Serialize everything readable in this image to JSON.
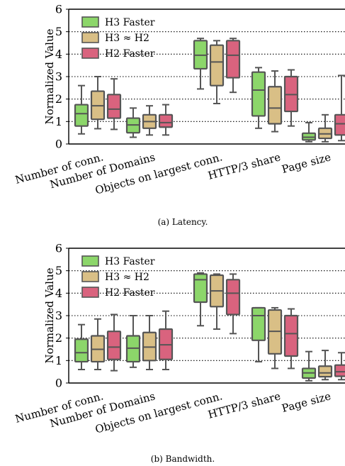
{
  "figure": {
    "captions": [
      "(a) Latency.",
      "(b) Bandwidth."
    ]
  },
  "colors": {
    "h3_faster": "#8cd66a",
    "equal": "#d9bf86",
    "h2_faster": "#d9637e",
    "box_edge": "#555555"
  },
  "chart_data": [
    {
      "type": "box",
      "ylabel": "Normalized Value",
      "ylim": [
        0,
        6
      ],
      "yticks": [
        0,
        1,
        2,
        3,
        4,
        5,
        6
      ],
      "grid": "horizontal-dotted",
      "legend_position": "top-left",
      "categories": [
        "Number of conn.",
        "Number of Domains",
        "Objects on largest conn.",
        "HTTP/3 share",
        "Page size"
      ],
      "series": [
        {
          "name": "H3 Faster",
          "color": "#8cd66a",
          "boxes": [
            {
              "whislo": 0.45,
              "q1": 0.8,
              "med": 1.35,
              "q3": 1.75,
              "whishi": 2.6
            },
            {
              "whislo": 0.3,
              "q1": 0.5,
              "med": 0.85,
              "q3": 1.15,
              "whishi": 1.6
            },
            {
              "whislo": 2.45,
              "q1": 3.35,
              "med": 3.95,
              "q3": 4.6,
              "whishi": 4.7
            },
            {
              "whislo": 0.7,
              "q1": 1.25,
              "med": 2.4,
              "q3": 3.2,
              "whishi": 3.4
            },
            {
              "whislo": 0.1,
              "q1": 0.18,
              "med": 0.3,
              "q3": 0.48,
              "whishi": 0.95
            }
          ]
        },
        {
          "name": "H3 ≈ H2",
          "color": "#d9bf86",
          "boxes": [
            {
              "whislo": 0.68,
              "q1": 1.1,
              "med": 1.7,
              "q3": 2.35,
              "whishi": 3.0
            },
            {
              "whislo": 0.4,
              "q1": 0.7,
              "med": 1.0,
              "q3": 1.3,
              "whishi": 1.7
            },
            {
              "whislo": 1.8,
              "q1": 2.6,
              "med": 3.65,
              "q3": 4.4,
              "whishi": 4.6
            },
            {
              "whislo": 0.55,
              "q1": 0.9,
              "med": 1.6,
              "q3": 2.55,
              "whishi": 3.25
            },
            {
              "whislo": 0.1,
              "q1": 0.25,
              "med": 0.45,
              "q3": 0.7,
              "whishi": 1.3
            }
          ]
        },
        {
          "name": "H2 Faster",
          "color": "#d9637e",
          "boxes": [
            {
              "whislo": 0.65,
              "q1": 1.15,
              "med": 1.55,
              "q3": 2.2,
              "whishi": 2.9
            },
            {
              "whislo": 0.4,
              "q1": 0.75,
              "med": 0.95,
              "q3": 1.3,
              "whishi": 1.75
            },
            {
              "whislo": 2.3,
              "q1": 2.95,
              "med": 3.95,
              "q3": 4.6,
              "whishi": 4.7
            },
            {
              "whislo": 0.8,
              "q1": 1.45,
              "med": 2.2,
              "q3": 3.0,
              "whishi": 3.3
            },
            {
              "whislo": 0.15,
              "q1": 0.4,
              "med": 0.9,
              "q3": 1.3,
              "whishi": 3.05
            }
          ]
        }
      ]
    },
    {
      "type": "box",
      "ylabel": "Normalized Value",
      "ylim": [
        0,
        6
      ],
      "yticks": [
        0,
        1,
        2,
        3,
        4,
        5,
        6
      ],
      "grid": "horizontal-dotted",
      "legend_position": "top-left",
      "categories": [
        "Number of conn.",
        "Number of Domains",
        "Objects on largest conn.",
        "HTTP/3 share",
        "Page size"
      ],
      "series": [
        {
          "name": "H3 Faster",
          "color": "#8cd66a",
          "boxes": [
            {
              "whislo": 0.6,
              "q1": 0.95,
              "med": 1.35,
              "q3": 1.95,
              "whishi": 2.6
            },
            {
              "whislo": 0.7,
              "q1": 0.95,
              "med": 1.55,
              "q3": 2.1,
              "whishi": 3.0
            },
            {
              "whislo": 2.55,
              "q1": 3.6,
              "med": 4.6,
              "q3": 4.85,
              "whishi": 4.9
            },
            {
              "whislo": 0.95,
              "q1": 1.9,
              "med": 3.0,
              "q3": 3.35,
              "whishi": 3.35
            },
            {
              "whislo": 0.1,
              "q1": 0.22,
              "med": 0.45,
              "q3": 0.65,
              "whishi": 1.4
            }
          ]
        },
        {
          "name": "H3 ≈ H2",
          "color": "#d9bf86",
          "boxes": [
            {
              "whislo": 0.6,
              "q1": 0.95,
              "med": 1.5,
              "q3": 2.1,
              "whishi": 2.85
            },
            {
              "whislo": 0.6,
              "q1": 1.0,
              "med": 1.6,
              "q3": 2.25,
              "whishi": 3.0
            },
            {
              "whislo": 2.4,
              "q1": 3.4,
              "med": 4.1,
              "q3": 4.8,
              "whishi": 4.85
            },
            {
              "whislo": 0.65,
              "q1": 1.3,
              "med": 2.3,
              "q3": 3.25,
              "whishi": 3.35
            },
            {
              "whislo": 0.15,
              "q1": 0.28,
              "med": 0.45,
              "q3": 0.75,
              "whishi": 1.45
            }
          ]
        },
        {
          "name": "H2 Faster",
          "color": "#d9637e",
          "boxes": [
            {
              "whislo": 0.55,
              "q1": 1.05,
              "med": 1.6,
              "q3": 2.3,
              "whishi": 3.05
            },
            {
              "whislo": 0.6,
              "q1": 1.05,
              "med": 1.7,
              "q3": 2.4,
              "whishi": 3.2
            },
            {
              "whislo": 2.2,
              "q1": 3.05,
              "med": 4.0,
              "q3": 4.6,
              "whishi": 4.85
            },
            {
              "whislo": 0.65,
              "q1": 1.2,
              "med": 2.2,
              "q3": 3.0,
              "whishi": 3.3
            },
            {
              "whislo": 0.15,
              "q1": 0.3,
              "med": 0.5,
              "q3": 0.8,
              "whishi": 1.35
            }
          ]
        }
      ]
    }
  ]
}
